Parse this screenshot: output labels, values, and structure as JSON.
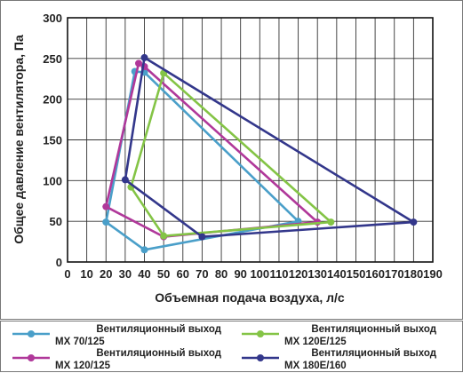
{
  "chart_data": {
    "type": "line",
    "xlabel": "Объемная подача воздуха, л/с",
    "ylabel": "Общее давление вентилятора, Па",
    "xlim": [
      0,
      190
    ],
    "ylim": [
      0,
      300
    ],
    "xticks": [
      0,
      10,
      20,
      30,
      40,
      50,
      60,
      70,
      80,
      90,
      100,
      110,
      120,
      130,
      140,
      150,
      160,
      170,
      180,
      190
    ],
    "yticks": [
      0,
      50,
      100,
      150,
      200,
      250,
      300
    ],
    "grid": true,
    "legend_position": "bottom",
    "series": [
      {
        "name_line1": "Вентиляционный выход",
        "name_line2": "MX 70/125",
        "color": "#4a9fc9",
        "points": [
          [
            20,
            49
          ],
          [
            40,
            15
          ],
          [
            120,
            50
          ],
          [
            40,
            233
          ],
          [
            35,
            234
          ],
          [
            20,
            49
          ]
        ]
      },
      {
        "name_line1": "Вентиляционный выход",
        "name_line2": "MX 120/125",
        "color": "#b0389a",
        "points": [
          [
            20,
            68
          ],
          [
            50,
            31
          ],
          [
            130,
            49
          ],
          [
            40,
            240
          ],
          [
            37,
            244
          ],
          [
            20,
            68
          ]
        ]
      },
      {
        "name_line1": "Вентиляционный выход",
        "name_line2": "MX 120E/125",
        "color": "#84c446",
        "points": [
          [
            33,
            92
          ],
          [
            50,
            32
          ],
          [
            137,
            49
          ],
          [
            50,
            232
          ],
          [
            33,
            92
          ]
        ]
      },
      {
        "name_line1": "Вентиляционный выход",
        "name_line2": "MX 180E/160",
        "color": "#33378b",
        "points": [
          [
            30,
            101
          ],
          [
            70,
            31
          ],
          [
            180,
            49
          ],
          [
            40,
            251
          ],
          [
            30,
            101
          ]
        ]
      }
    ]
  }
}
